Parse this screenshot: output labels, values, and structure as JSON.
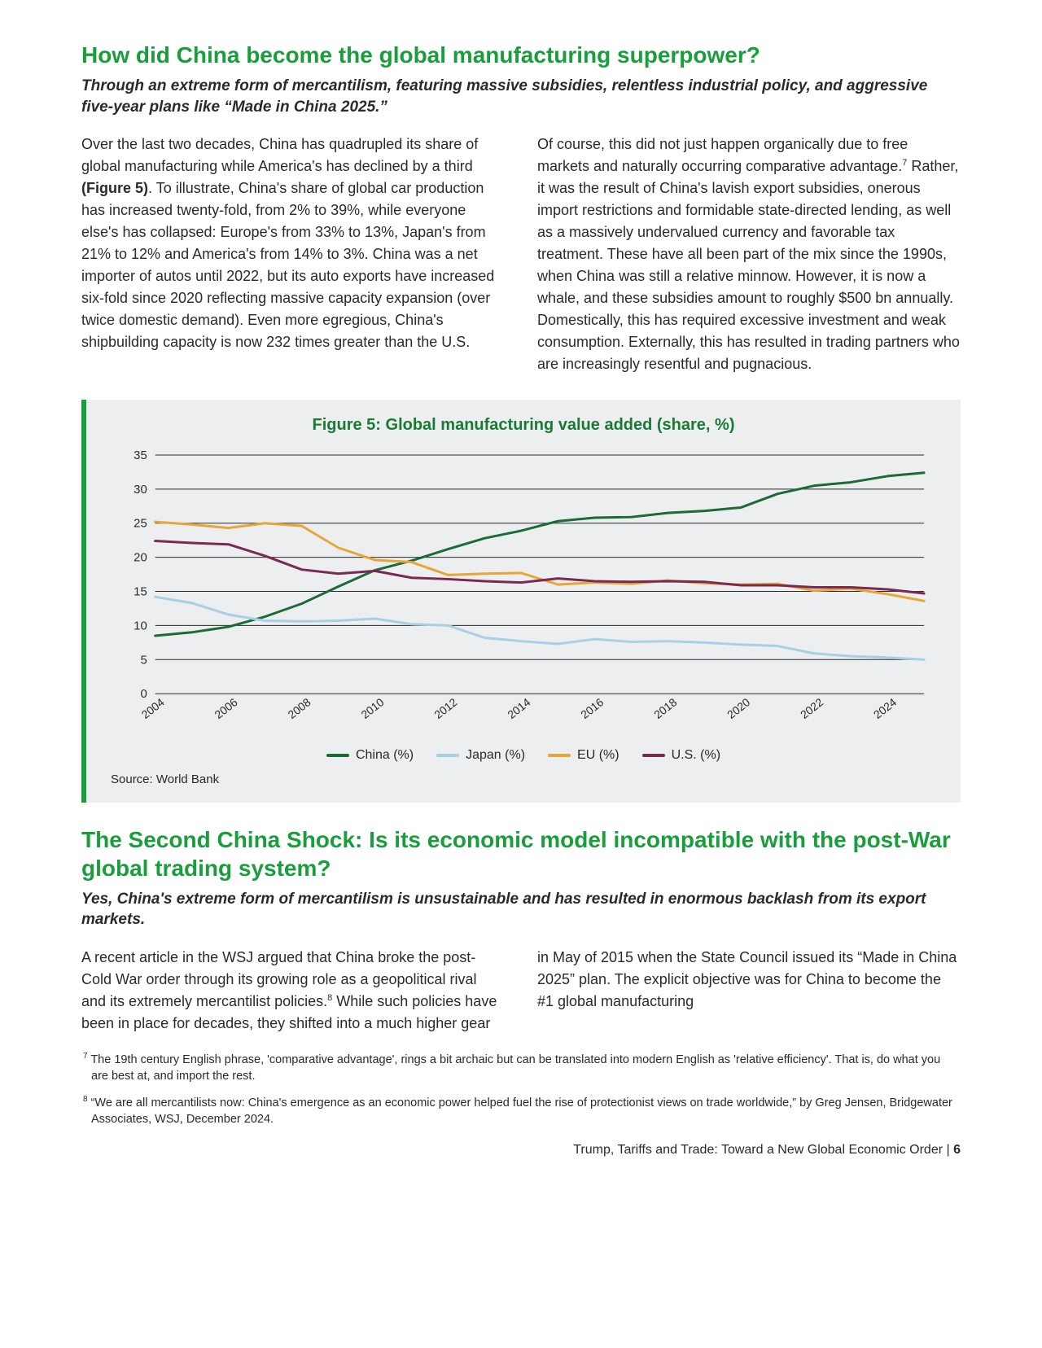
{
  "section1": {
    "heading": "How did China become the global manufacturing superpower?",
    "subheading": "Through an extreme form of mercantilism, featuring massive subsidies, relentless industrial policy, and aggressive five-year plans like “Made in China 2025.”",
    "para1a": "Over the last two decades, China has quadrupled its share of global manufacturing while America's has declined by a third ",
    "para1b_bold": "(Figure 5)",
    "para1c": ". To illustrate, China's share of global car production has increased twenty-fold, from 2% to 39%, while everyone else's has collapsed: Europe's from 33% to 13%, Japan's from 21% to 12% and America's from 14% to 3%. China was a net importer of autos until 2022, but its auto exports have increased six-fold since 2020 reflecting massive capacity expansion (over twice domestic demand). Even more egregious, China's shipbuilding capacity is now 232 times greater than the U.S.",
    "para2a": "Of course, this did not just happen organically due to free markets and naturally occurring comparative advantage.",
    "para2_sup": "7",
    "para2b": " Rather, it was the result of China's lavish export subsidies, onerous import restrictions and formidable state-directed lending, as well as a massively undervalued currency and favorable tax treatment. These have all been part of the mix since the 1990s, when China was still a relative minnow. However, it is now a whale, and these subsidies amount to roughly $500 bn annually. Domestically, this has required excessive investment and weak consumption. Externally, this has resulted in trading partners who are increasingly resentful and pugnacious."
  },
  "chart": {
    "title": "Figure 5: Global manufacturing value added (share, %)",
    "source": "Source: World Bank",
    "background": "#eceef0",
    "accent_border": "#1a9e3c",
    "grid_color": "#2a2a2a",
    "axis_color": "#2a2a2a",
    "title_color": "#1a7a34",
    "title_fontsize": 20,
    "ylim": [
      0,
      35
    ],
    "ytick_step": 5,
    "yticks": [
      0,
      5,
      10,
      15,
      20,
      25,
      30,
      35
    ],
    "xticks": [
      "2004",
      "2006",
      "2008",
      "2010",
      "2012",
      "2014",
      "2016",
      "2018",
      "2020",
      "2022",
      "2024"
    ],
    "xtick_positions": [
      0,
      2,
      4,
      6,
      8,
      10,
      12,
      14,
      16,
      18,
      20
    ],
    "line_width": 3,
    "series": [
      {
        "name": "China (%)",
        "color": "#1a6b36",
        "values": [
          8.5,
          9.0,
          9.8,
          11.3,
          13.2,
          15.7,
          18.1,
          19.5,
          21.2,
          22.8,
          23.9,
          25.3,
          25.8,
          25.9,
          26.5,
          26.8,
          27.3,
          29.3,
          30.5,
          31.0,
          31.9,
          32.4
        ]
      },
      {
        "name": "Japan (%)",
        "color": "#a9cfe3",
        "values": [
          14.2,
          13.3,
          11.6,
          10.7,
          10.6,
          10.7,
          11.0,
          10.2,
          10.0,
          8.2,
          7.7,
          7.3,
          8.0,
          7.6,
          7.7,
          7.5,
          7.2,
          7.0,
          5.9,
          5.5,
          5.3,
          5.0
        ]
      },
      {
        "name": "EU (%)",
        "color": "#e7a637",
        "values": [
          25.2,
          24.8,
          24.3,
          25.0,
          24.6,
          21.4,
          19.6,
          19.3,
          17.4,
          17.6,
          17.7,
          16.0,
          16.3,
          16.1,
          16.6,
          16.2,
          16.0,
          16.1,
          15.1,
          15.4,
          14.6,
          13.6
        ]
      },
      {
        "name": "U.S. (%)",
        "color": "#7a2a52",
        "values": [
          22.4,
          22.1,
          21.9,
          20.2,
          18.2,
          17.6,
          18.0,
          17.0,
          16.8,
          16.5,
          16.3,
          16.9,
          16.5,
          16.4,
          16.5,
          16.4,
          15.9,
          15.9,
          15.6,
          15.6,
          15.3,
          14.7
        ]
      }
    ],
    "legend_labels": [
      "China (%)",
      "Japan (%)",
      "EU (%)",
      "U.S. (%)"
    ],
    "legend_colors": [
      "#1a6b36",
      "#a9cfe3",
      "#e7a637",
      "#7a2a52"
    ]
  },
  "section2": {
    "heading": "The Second China Shock: Is its economic model incompatible with the post-War global trading system?",
    "subheading": "Yes, China's extreme form of mercantilism is unsustainable and has resulted in enormous backlash from its export markets.",
    "para1a": "A recent article in the WSJ argued that China broke the post-Cold War order through its growing role as a geopolitical rival and its extremely mercantilist policies.",
    "para1_sup": "8",
    "para1b": " While such policies have been in place for decades, they shifted into a much higher gear in May of 2015 when the State Council issued its “Made in China 2025” plan. The explicit objective was for China to become the #1 global manufacturing"
  },
  "footnotes": {
    "fn7_sup": "7",
    "fn7": " The 19th century English phrase, 'comparative advantage', rings a bit archaic but can be translated into modern English as 'relative efficiency'. That is, do what you are best at, and import the rest.",
    "fn8_sup": "8",
    "fn8": " “We are all mercantilists now: China's emergence as an economic power helped fuel the rise of protectionist views on trade worldwide,” by Greg Jensen, Bridgewater Associates, WSJ, December 2024."
  },
  "footer": {
    "text": "Trump, Tariffs and Trade: Toward a New Global Economic Order  |  ",
    "page": "6"
  }
}
